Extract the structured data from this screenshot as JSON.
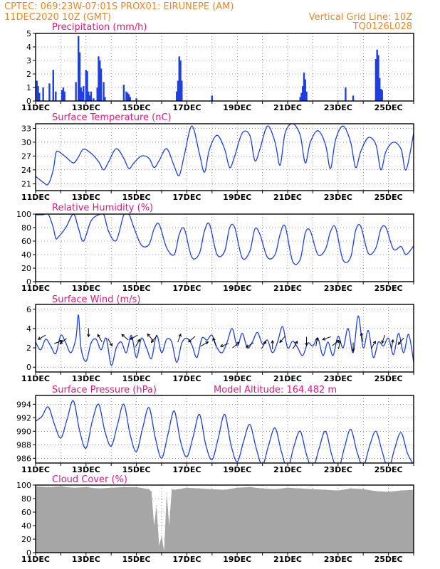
{
  "header": {
    "line1": "CPTEC:   069:23W-07:01S   PROX01: EIRUNEPE (AM)",
    "line2_left": "11DEC2020  10Z (GMT)",
    "line2_right": "Vertical Grid Line: 10Z",
    "line3_right": "TQ0126L028"
  },
  "x_axis_labels": [
    "11DEC",
    "13DEC",
    "15DEC",
    "17DEC",
    "19DEC",
    "21DEC",
    "23DEC",
    "25DEC"
  ],
  "day_range": [
    0,
    15
  ],
  "colors": {
    "series": "#1f3fe0",
    "header": "#e8872a",
    "title": "#e0177a",
    "cloud": "#a6a6a6"
  },
  "chart_data": [
    {
      "type": "bar",
      "title": "Precipitation (mm/h)",
      "ylim": [
        0,
        5
      ],
      "yticks": [
        "0",
        "1",
        "2",
        "3",
        "4",
        "5"
      ],
      "x_unit": "days since 11DEC 10Z",
      "x": [
        0.05,
        0.1,
        0.15,
        0.3,
        0.55,
        0.7,
        0.8,
        1.05,
        1.1,
        1.15,
        1.6,
        1.7,
        1.75,
        1.8,
        1.85,
        1.9,
        2.0,
        2.05,
        2.1,
        2.15,
        2.2,
        2.3,
        2.45,
        2.5,
        2.55,
        2.6,
        2.7,
        2.75,
        3.5,
        3.6,
        3.65,
        3.7,
        3.75,
        4.0,
        5.6,
        5.65,
        5.7,
        5.75,
        5.8,
        7.0,
        10.5,
        10.55,
        10.6,
        10.65,
        10.7,
        10.75,
        12.3,
        12.6,
        13.5,
        13.55,
        13.6,
        13.65,
        13.7,
        13.75
      ],
      "values": [
        1.5,
        1.1,
        0.6,
        1.0,
        1.3,
        2.3,
        0.7,
        0.8,
        1.0,
        0.7,
        1.4,
        4.8,
        3.6,
        1.0,
        0.7,
        1.1,
        2.3,
        2.2,
        0.7,
        0.4,
        0.7,
        0.2,
        1.0,
        3.3,
        3.0,
        2.4,
        1.4,
        0.3,
        1.2,
        0.7,
        0.6,
        0.5,
        0.3,
        0.2,
        0.7,
        1.5,
        3.3,
        3.0,
        1.5,
        0.4,
        0.3,
        0.6,
        1.1,
        2.1,
        1.6,
        0.7,
        1.0,
        0.4,
        3.1,
        3.8,
        3.4,
        1.7,
        0.9,
        0.8
      ]
    },
    {
      "type": "line",
      "title": "Surface Temperature (nC)",
      "ylim": [
        19.5,
        34
      ],
      "yticks": [
        "21",
        "24",
        "27",
        "30",
        "33"
      ],
      "x_unit": "days since 11DEC 10Z",
      "x": [
        0,
        0.3,
        0.5,
        0.7,
        0.8,
        0.9,
        1.2,
        1.5,
        1.7,
        1.9,
        2.2,
        2.5,
        2.7,
        2.9,
        3.2,
        3.5,
        3.7,
        3.9,
        4.2,
        4.5,
        4.7,
        4.9,
        5.2,
        5.5,
        5.7,
        5.9,
        6.2,
        6.5,
        6.7,
        6.9,
        7.2,
        7.5,
        7.7,
        7.9,
        8.2,
        8.5,
        8.7,
        8.9,
        9.2,
        9.5,
        9.7,
        9.9,
        10.2,
        10.5,
        10.7,
        10.9,
        11.2,
        11.5,
        11.7,
        11.9,
        12.2,
        12.5,
        12.7,
        12.9,
        13.2,
        13.5,
        13.7,
        13.9,
        14.2,
        14.5,
        14.7,
        15
      ],
      "values": [
        22.6,
        21.3,
        20.9,
        24,
        27.5,
        28,
        26.8,
        25.5,
        26.8,
        28.5,
        27.6,
        25.8,
        24,
        25.8,
        28.6,
        26.5,
        24.3,
        25.5,
        27,
        26.5,
        24.5,
        26,
        28.6,
        24.8,
        22.8,
        27.2,
        33.5,
        27.5,
        23.5,
        28.5,
        31.5,
        28.5,
        24.5,
        27,
        32,
        31.5,
        26,
        28.5,
        33.5,
        30,
        25,
        32,
        34,
        31.5,
        25.5,
        30,
        32.5,
        29.5,
        24.3,
        30.5,
        33.5,
        30,
        24.5,
        28,
        31,
        29.5,
        24,
        28,
        30,
        28.5,
        24,
        32
      ]
    },
    {
      "type": "line",
      "title": "Relative Humidity (%)",
      "ylim": [
        0,
        100
      ],
      "yticks": [
        "0",
        "20",
        "40",
        "60",
        "80",
        "100"
      ],
      "x_unit": "days since 11DEC 10Z",
      "x": [
        0,
        0.3,
        0.5,
        0.7,
        0.8,
        0.9,
        1.2,
        1.5,
        1.7,
        1.9,
        2.2,
        2.5,
        2.7,
        2.9,
        3.2,
        3.5,
        3.7,
        3.9,
        4.2,
        4.5,
        4.7,
        4.9,
        5.2,
        5.5,
        5.7,
        5.9,
        6.2,
        6.5,
        6.7,
        6.9,
        7.2,
        7.5,
        7.7,
        7.9,
        8.2,
        8.5,
        8.7,
        8.9,
        9.2,
        9.5,
        9.7,
        9.9,
        10.2,
        10.5,
        10.7,
        10.9,
        11.2,
        11.5,
        11.7,
        11.9,
        12.2,
        12.5,
        12.7,
        12.9,
        13.2,
        13.5,
        13.7,
        13.9,
        14.2,
        14.5,
        14.7,
        15
      ],
      "values": [
        99,
        99,
        100,
        80,
        64,
        66,
        80,
        100,
        79,
        60,
        90,
        99,
        100,
        74,
        61,
        99,
        100,
        80,
        54,
        55,
        78,
        85,
        50,
        40,
        70,
        78,
        36,
        42,
        75,
        85,
        40,
        45,
        80,
        80,
        35,
        45,
        78,
        70,
        36,
        40,
        70,
        82,
        30,
        33,
        72,
        75,
        40,
        48,
        74,
        80,
        32,
        36,
        76,
        82,
        42,
        50,
        78,
        80,
        48,
        52,
        40,
        53
      ]
    },
    {
      "type": "line",
      "title": "Surface Wind (m/s)",
      "ylim": [
        -0.5,
        6.5
      ],
      "yticks": [
        "0",
        "2",
        "4",
        "6"
      ],
      "x_unit": "days since 11DEC 10Z",
      "x": [
        0,
        0.2,
        0.4,
        0.6,
        0.8,
        1.0,
        1.2,
        1.4,
        1.6,
        1.7,
        1.8,
        2.0,
        2.2,
        2.4,
        2.6,
        2.8,
        3.0,
        3.2,
        3.4,
        3.6,
        3.8,
        4.0,
        4.2,
        4.4,
        4.6,
        4.8,
        5.0,
        5.2,
        5.4,
        5.6,
        5.8,
        6.0,
        6.2,
        6.4,
        6.6,
        6.8,
        7.0,
        7.2,
        7.4,
        7.6,
        7.8,
        8.0,
        8.2,
        8.4,
        8.6,
        8.8,
        9.0,
        9.2,
        9.4,
        9.6,
        9.8,
        10.0,
        10.2,
        10.4,
        10.6,
        10.8,
        11.0,
        11.2,
        11.4,
        11.6,
        11.8,
        12.0,
        12.2,
        12.4,
        12.6,
        12.8,
        13.0,
        13.2,
        13.4,
        13.6,
        13.8,
        14.0,
        14.2,
        14.4,
        14.6,
        14.8,
        15
      ],
      "values": [
        2.6,
        1.8,
        2.9,
        2.2,
        1.4,
        3.3,
        2.5,
        1.5,
        3.0,
        5.4,
        2.0,
        0.6,
        2.5,
        2.9,
        1.8,
        3.0,
        0.2,
        2.0,
        2.6,
        1.5,
        3.3,
        1.0,
        3.0,
        2.0,
        0.9,
        3.3,
        1.5,
        2.9,
        2.6,
        0.5,
        2.5,
        3.0,
        2.3,
        1.0,
        3.0,
        2.8,
        3.3,
        2.0,
        1.5,
        2.6,
        4.0,
        2.2,
        3.5,
        2.0,
        2.6,
        3.6,
        2.4,
        2.8,
        1.5,
        2.6,
        4.2,
        2.0,
        2.7,
        2.0,
        1.2,
        2.5,
        2.2,
        3.0,
        1.2,
        2.6,
        1.2,
        3.2,
        2.0,
        4.0,
        1.5,
        5.3,
        2.0,
        3.8,
        1.0,
        2.6,
        2.2,
        3.0,
        1.3,
        3.5,
        1.5,
        3.4,
        0.5
      ]
    },
    {
      "type": "line",
      "title": "Surface Pressure (hPa)",
      "annotation": "Model Altitude: 164.482 m",
      "ylim": [
        985.3,
        995.3
      ],
      "yticks": [
        "986",
        "988",
        "990",
        "992",
        "994"
      ],
      "x_unit": "days since 11DEC 10Z",
      "x": [
        0,
        0.25,
        0.5,
        0.75,
        1.0,
        1.25,
        1.5,
        1.75,
        2.0,
        2.25,
        2.5,
        2.75,
        3.0,
        3.25,
        3.5,
        3.75,
        4.0,
        4.25,
        4.5,
        4.75,
        5.0,
        5.25,
        5.5,
        5.75,
        6.0,
        6.25,
        6.5,
        6.75,
        7.0,
        7.25,
        7.5,
        7.75,
        8.0,
        8.25,
        8.5,
        8.75,
        9.0,
        9.25,
        9.5,
        9.75,
        10.0,
        10.25,
        10.5,
        10.75,
        11.0,
        11.25,
        11.5,
        11.75,
        12.0,
        12.25,
        12.5,
        12.75,
        13.0,
        13.25,
        13.5,
        13.75,
        14.0,
        14.25,
        14.5,
        14.75,
        15
      ],
      "values": [
        991.5,
        992.2,
        993.6,
        991.0,
        989.0,
        991.8,
        994.5,
        990.0,
        987.5,
        991.5,
        994.0,
        990.0,
        987.8,
        991.0,
        994.0,
        989.5,
        987.0,
        990.5,
        993.5,
        989.0,
        986.0,
        989.5,
        993.0,
        988.5,
        986.2,
        989.2,
        992.5,
        988.0,
        985.8,
        989.0,
        992.5,
        988.0,
        985.5,
        988.5,
        991.0,
        987.5,
        985.0,
        988.0,
        990.5,
        987.0,
        984.5,
        987.8,
        990.0,
        986.5,
        984.5,
        987.5,
        990.0,
        986.5,
        984.3,
        987.5,
        990.3,
        987.0,
        984.8,
        987.8,
        990.0,
        987.0,
        984.5,
        987.5,
        989.8,
        986.8,
        985.0
      ]
    },
    {
      "type": "area",
      "title": "Cloud Cover (%)",
      "ylim": [
        0,
        100
      ],
      "yticks": [
        "0",
        "20",
        "40",
        "60",
        "80",
        "100"
      ],
      "x_unit": "days since 11DEC 10Z",
      "x": [
        0,
        0.5,
        1.0,
        1.5,
        2.0,
        2.5,
        3.0,
        3.5,
        4.0,
        4.5,
        4.6,
        4.7,
        4.8,
        4.9,
        5.0,
        5.1,
        5.2,
        5.3,
        5.4,
        5.5,
        6.0,
        6.5,
        7.0,
        7.5,
        8.0,
        8.5,
        9.0,
        9.5,
        10.0,
        10.5,
        11.0,
        11.5,
        12.0,
        12.5,
        13.0,
        13.5,
        14.0,
        14.5,
        15
      ],
      "values": [
        98,
        97,
        98,
        96,
        97,
        95,
        96,
        97,
        97,
        94,
        90,
        40,
        70,
        10,
        25,
        2,
        88,
        40,
        94,
        93,
        96,
        95,
        94,
        93,
        96,
        97,
        95,
        94,
        96,
        95,
        94,
        93,
        92,
        95,
        94,
        91,
        90,
        92,
        93
      ]
    }
  ]
}
